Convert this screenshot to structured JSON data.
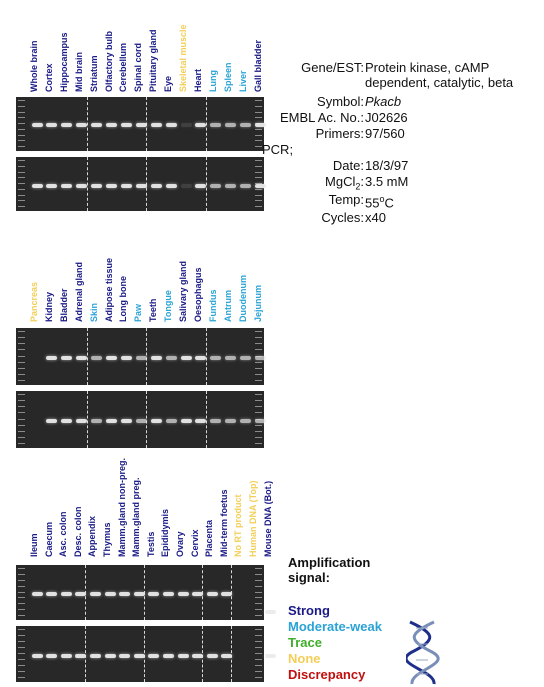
{
  "colors": {
    "strong": "#1a1a86",
    "moderate_weak": "#2aa3d6",
    "trace": "#3fae2a",
    "none": "#f3cf58",
    "discrepancy": "#c01010"
  },
  "panels": [
    {
      "lanes": [
        {
          "label": "Whole brain",
          "signal": "strong"
        },
        {
          "label": "Cortex",
          "signal": "strong"
        },
        {
          "label": "Hippocampus",
          "signal": "strong"
        },
        {
          "label": "Mid brain",
          "signal": "strong"
        },
        {
          "label": "Striatum",
          "signal": "strong"
        },
        {
          "label": "Olfactory bulb",
          "signal": "strong"
        },
        {
          "label": "Cerebellum",
          "signal": "strong"
        },
        {
          "label": "Spinal cord",
          "signal": "strong"
        },
        {
          "label": "Pituitary gland",
          "signal": "strong"
        },
        {
          "label": "Eye",
          "signal": "strong"
        },
        {
          "label": "Skeletal muscle",
          "signal": "none"
        },
        {
          "label": "Heart",
          "signal": "strong"
        },
        {
          "label": "Lung",
          "signal": "moderate_weak"
        },
        {
          "label": "Spleen",
          "signal": "moderate_weak"
        },
        {
          "label": "Liver",
          "signal": "moderate_weak"
        },
        {
          "label": "Gall bladder",
          "signal": "strong"
        }
      ]
    },
    {
      "lanes": [
        {
          "label": "Pancreas",
          "signal": "none"
        },
        {
          "label": "Kidney",
          "signal": "strong"
        },
        {
          "label": "Bladder",
          "signal": "strong"
        },
        {
          "label": "Adrenal gland",
          "signal": "strong"
        },
        {
          "label": "Skin",
          "signal": "moderate_weak"
        },
        {
          "label": "Adipose tissue",
          "signal": "strong"
        },
        {
          "label": "Long bone",
          "signal": "strong"
        },
        {
          "label": "Paw",
          "signal": "moderate_weak"
        },
        {
          "label": "Teeth",
          "signal": "strong"
        },
        {
          "label": "Tongue",
          "signal": "moderate_weak"
        },
        {
          "label": "Salivary gland",
          "signal": "strong"
        },
        {
          "label": "Oesophagus",
          "signal": "strong"
        },
        {
          "label": "Fundus",
          "signal": "moderate_weak"
        },
        {
          "label": "Antrum",
          "signal": "moderate_weak"
        },
        {
          "label": "Duodenum",
          "signal": "moderate_weak"
        },
        {
          "label": "Jejunum",
          "signal": "moderate_weak"
        }
      ]
    },
    {
      "lanes": [
        {
          "label": "Ileum",
          "signal": "strong"
        },
        {
          "label": "Caecum",
          "signal": "strong"
        },
        {
          "label": "Asc. colon",
          "signal": "strong"
        },
        {
          "label": "Desc. colon",
          "signal": "strong"
        },
        {
          "label": "Appendix",
          "signal": "strong"
        },
        {
          "label": "Thymus",
          "signal": "strong"
        },
        {
          "label": "Mamm.gland non-preg.",
          "signal": "strong"
        },
        {
          "label": "Mamm.gland preg.",
          "signal": "strong"
        },
        {
          "label": "Testis",
          "signal": "strong"
        },
        {
          "label": "Epididymis",
          "signal": "strong"
        },
        {
          "label": "Ovary",
          "signal": "strong"
        },
        {
          "label": "Cervix",
          "signal": "strong"
        },
        {
          "label": "Placenta",
          "signal": "strong"
        },
        {
          "label": "Mid-term foetus",
          "signal": "strong"
        },
        {
          "label": "No RT product",
          "signal": "none"
        },
        {
          "label": "Human DNA (Top)",
          "signal": "none"
        },
        {
          "label": "Mouse DNA (Bot.)",
          "signal": "strong"
        }
      ]
    }
  ],
  "info": {
    "rows": [
      {
        "key": "Gene/EST:",
        "value": "Protein kinase, cAMP"
      },
      {
        "key": "",
        "value": "dependent, catalytic, beta"
      },
      {
        "key": "Symbol:",
        "value": "Pkacb",
        "italic": true
      },
      {
        "key": "EMBL Ac. No.:",
        "value": "J02626"
      },
      {
        "key": "Primers:",
        "value": "97/560"
      }
    ],
    "pcr_label": "PCR;",
    "pcr_rows": [
      {
        "key": "Date:",
        "value": "18/3/97"
      },
      {
        "key": "MgCl",
        "sub": "2",
        "colon": ":",
        "value": "3.5 mM"
      },
      {
        "key": "Temp:",
        "value": "55",
        "sup": "o",
        "value_suffix": "C"
      },
      {
        "key": "Cycles:",
        "value": "x40"
      }
    ]
  },
  "legend": {
    "title_line1": "Amplification",
    "title_line2": "signal:",
    "items": [
      {
        "label": "Strong",
        "signal": "strong"
      },
      {
        "label": "Moderate-weak",
        "signal": "moderate_weak"
      },
      {
        "label": "Trace",
        "signal": "trace"
      },
      {
        "label": "None",
        "signal": "none"
      },
      {
        "label": "Discrepancy",
        "signal": "discrepancy"
      }
    ]
  }
}
